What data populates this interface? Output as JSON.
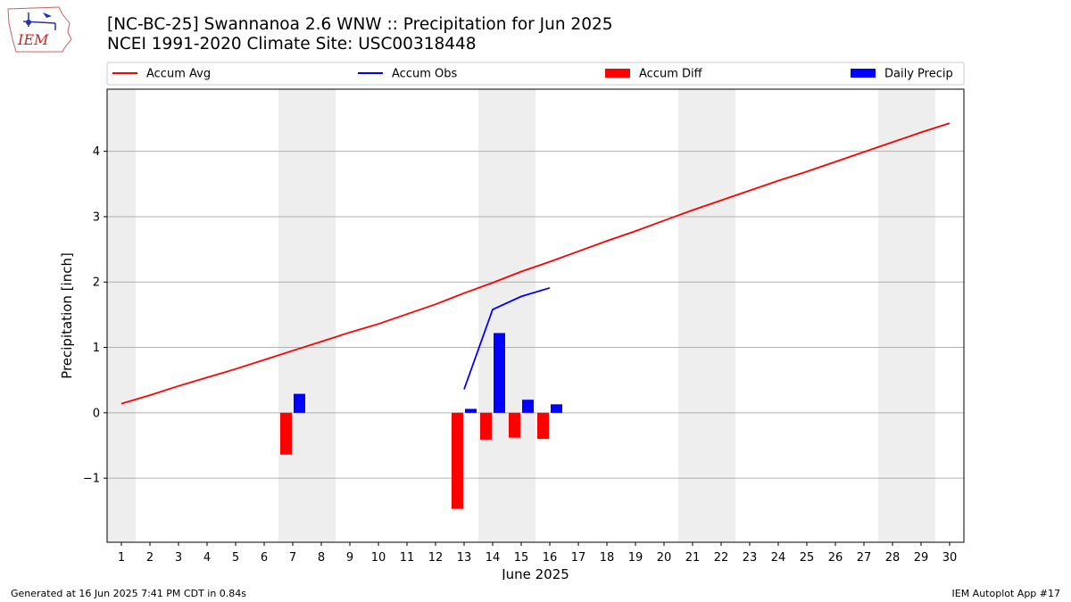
{
  "header": {
    "title_line1": "[NC-BC-25] Swannanoa 2.6 WNW :: Precipitation for Jun 2025",
    "title_line2": "NCEI 1991-2020 Climate Site: USC00318448",
    "logo_text": "IEM"
  },
  "footer": {
    "left": "Generated at 16 Jun 2025 7:41 PM CDT in 0.84s",
    "right": "IEM Autoplot App #17"
  },
  "colors": {
    "accum_avg": "#ff0000",
    "accum_obs": "#0000ff",
    "accum_diff": "#ff0000",
    "daily_precip": "#0000ff",
    "weekend_shade": "#eeeeee",
    "grid": "#b0b0b0"
  },
  "chart_data": {
    "type": "bar",
    "xlabel": "June 2025",
    "ylabel": "Precipitation [inch]",
    "x": [
      1,
      2,
      3,
      4,
      5,
      6,
      7,
      8,
      9,
      10,
      11,
      12,
      13,
      14,
      15,
      16,
      17,
      18,
      19,
      20,
      21,
      22,
      23,
      24,
      25,
      26,
      27,
      28,
      29,
      30
    ],
    "xlim": [
      0.5,
      30.5
    ],
    "ylim": [
      -1.98,
      4.95
    ],
    "yticks": [
      -1,
      0,
      1,
      2,
      3,
      4
    ],
    "grid": "horizontal",
    "legend_position": "top",
    "shaded_weekend_days": [
      1,
      7,
      8,
      14,
      15,
      21,
      22,
      28,
      29
    ],
    "series": [
      {
        "name": "Accum Avg",
        "type": "line",
        "x": [
          1,
          2,
          3,
          4,
          5,
          6,
          7,
          8,
          9,
          10,
          11,
          12,
          13,
          14,
          15,
          16,
          17,
          18,
          19,
          20,
          21,
          22,
          23,
          24,
          25,
          26,
          27,
          28,
          29,
          30
        ],
        "values": [
          0.14,
          0.27,
          0.41,
          0.54,
          0.67,
          0.81,
          0.95,
          1.09,
          1.23,
          1.36,
          1.51,
          1.66,
          1.83,
          1.99,
          2.16,
          2.31,
          2.47,
          2.63,
          2.78,
          2.94,
          3.1,
          3.25,
          3.4,
          3.55,
          3.69,
          3.84,
          3.99,
          4.14,
          4.29,
          4.43
        ]
      },
      {
        "name": "Accum Obs",
        "type": "line",
        "x": [
          13,
          14,
          15,
          16
        ],
        "values": [
          0.36,
          1.58,
          1.78,
          1.91
        ]
      },
      {
        "name": "Accum Diff",
        "type": "bar",
        "x": [
          7,
          13,
          14,
          15,
          16
        ],
        "values": [
          -0.64,
          -1.47,
          -0.41,
          -0.38,
          -0.4
        ]
      },
      {
        "name": "Daily Precip",
        "type": "bar",
        "x": [
          7,
          13,
          14,
          15,
          16
        ],
        "values": [
          0.29,
          0.06,
          1.22,
          0.2,
          0.13
        ]
      }
    ]
  }
}
